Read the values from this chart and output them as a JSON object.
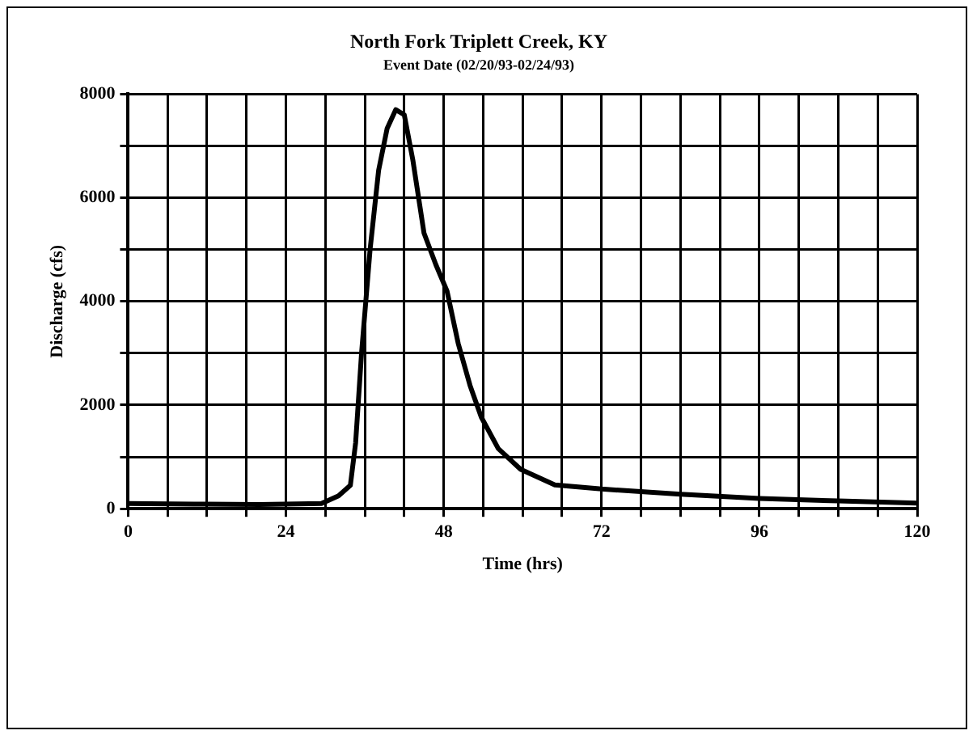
{
  "chart_data": {
    "type": "line",
    "title": "North Fork Triplett Creek, KY",
    "subtitle": "Event Date (02/20/93-02/24/93)",
    "xlabel": "Time (hrs)",
    "ylabel": "Discharge (cfs)",
    "series": [
      {
        "color": "#000000",
        "x": [
          0,
          10,
          20,
          29.4,
          32,
          33.8,
          34.6,
          35.5,
          36.8,
          38.1,
          39.4,
          40.7,
          42,
          43.3,
          45,
          46.8,
          48.5,
          50.2,
          52,
          53.7,
          56.3,
          59.7,
          64.9,
          72,
          84,
          96,
          108,
          120
        ],
        "values": [
          100,
          90,
          80,
          100,
          250,
          450,
          1270,
          3000,
          5000,
          6530,
          7340,
          7700,
          7600,
          6730,
          5320,
          4710,
          4200,
          3190,
          2380,
          1770,
          1160,
          760,
          460,
          380,
          280,
          200,
          150,
          110
        ]
      }
    ],
    "xlim": [
      0,
      120
    ],
    "xticks": [
      0,
      {
        "value": 6,
        "label": null
      },
      {
        "value": 12,
        "label": null
      },
      {
        "value": 18,
        "label": null
      },
      24,
      {
        "value": 30,
        "label": null
      },
      {
        "value": 36,
        "label": null
      },
      {
        "value": 42,
        "label": null
      },
      48,
      {
        "value": 54,
        "label": null
      },
      {
        "value": 60,
        "label": null
      },
      {
        "value": 66,
        "label": null
      },
      72,
      {
        "value": 78,
        "label": null
      },
      {
        "value": 84,
        "label": null
      },
      {
        "value": 90,
        "label": null
      },
      96,
      {
        "value": 102,
        "label": null
      },
      {
        "value": 108,
        "label": null
      },
      {
        "value": 114,
        "label": null
      },
      120
    ],
    "ylim": [
      0,
      8000
    ],
    "yticks": [
      0,
      {
        "value": 1000,
        "label": null
      },
      2000,
      {
        "value": 3000,
        "label": null
      },
      4000,
      {
        "value": 5000,
        "label": null
      },
      6000,
      {
        "value": 7000,
        "label": null
      },
      8000
    ],
    "grid": true,
    "legend": false,
    "marker": "none",
    "line_style": "solid"
  }
}
